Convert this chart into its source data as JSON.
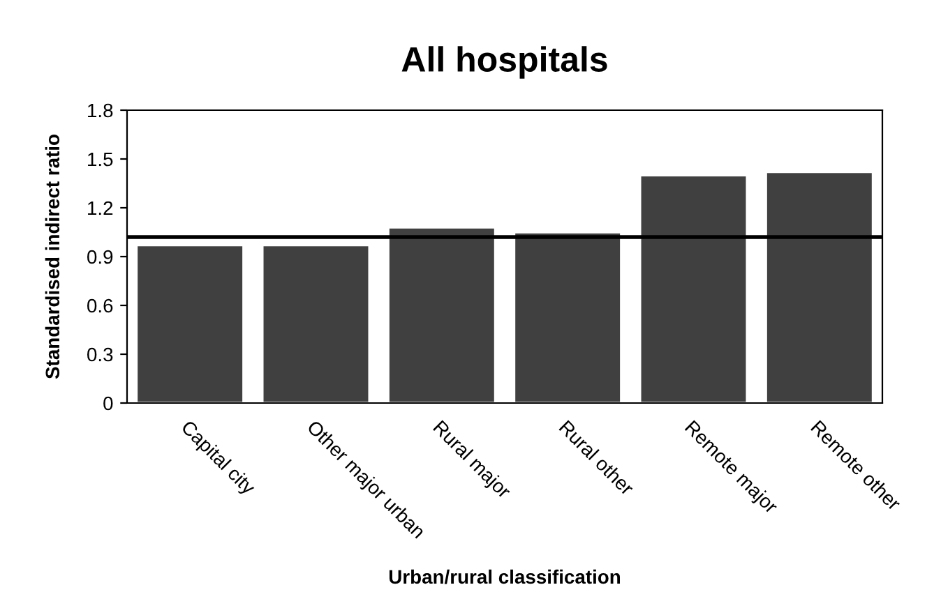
{
  "chart_data": {
    "type": "bar",
    "title": "All hospitals",
    "xlabel": "Urban/rural classification",
    "ylabel": "Standardised indirect ratio",
    "categories": [
      "Capital city",
      "Other major urban",
      "Rural major",
      "Rural other",
      "Remote major",
      "Remote other"
    ],
    "values": [
      0.97,
      0.97,
      1.08,
      1.05,
      1.4,
      1.42
    ],
    "color": "#404040",
    "ylim": [
      0,
      1.8
    ],
    "yticks": [
      0,
      0.3,
      0.6,
      0.9,
      1.2,
      1.5,
      1.8
    ],
    "grid": false,
    "legend": false,
    "ref_lines": [
      {
        "axis": "y",
        "value": 1.02,
        "color": "#000000",
        "line_style": "solid"
      }
    ]
  }
}
